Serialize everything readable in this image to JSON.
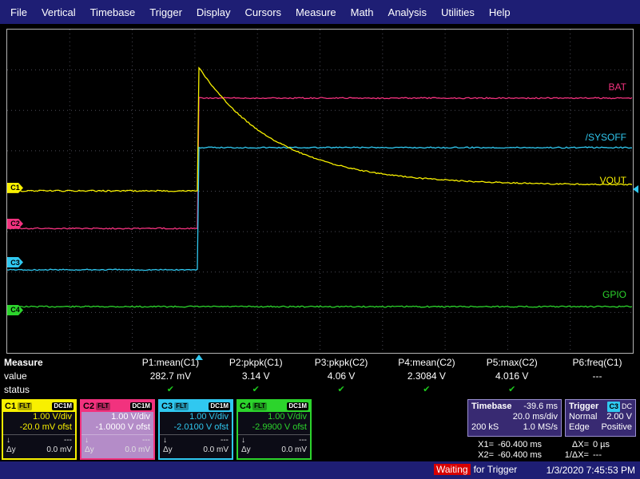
{
  "menu": {
    "items": [
      "File",
      "Vertical",
      "Timebase",
      "Trigger",
      "Display",
      "Cursors",
      "Measure",
      "Math",
      "Analysis",
      "Utilities",
      "Help"
    ]
  },
  "chart_data": {
    "type": "line",
    "x_per_div": "20.0 ms/div",
    "y_per_div": "1.00 V/div",
    "divisions_x": 10,
    "divisions_y": 8,
    "series": [
      {
        "name": "VOUT",
        "channel": "C1",
        "color": "#f8f000",
        "shape": "spike_decay",
        "baseline": 0.499,
        "peak": 0.116,
        "final": 0.481,
        "step_x": 0.306,
        "tau": 0.125,
        "label_y": 0.467,
        "z": 3
      },
      {
        "name": "BAT",
        "channel": "C2",
        "color": "#f2327e",
        "shape": "step",
        "low": 0.615,
        "high": 0.212,
        "step_x": 0.306,
        "label_y": 0.178,
        "z": 1
      },
      {
        "name": "/SYSOFF",
        "channel": "C3",
        "color": "#30c8f0",
        "shape": "step",
        "low": 0.743,
        "high": 0.365,
        "step_x": 0.306,
        "label_y": 0.333,
        "z": 2
      },
      {
        "name": "GPIO",
        "channel": "C4",
        "color": "#2cd42c",
        "shape": "flat",
        "level": 0.857,
        "label_y": 0.82,
        "z": 0
      }
    ]
  },
  "scope": {
    "trigger_marker": {
      "x": 0.306,
      "level_y": 0.494
    }
  },
  "measure": {
    "row_label": "Measure",
    "value_label": "value",
    "status_label": "status",
    "columns": [
      {
        "header": "P1:mean(C1)",
        "value": "282.7 mV",
        "status": "✔"
      },
      {
        "header": "P2:pkpk(C1)",
        "value": "3.14 V",
        "status": "✔"
      },
      {
        "header": "P3:pkpk(C2)",
        "value": "4.06 V",
        "status": "✔"
      },
      {
        "header": "P4:mean(C2)",
        "value": "2.3084 V",
        "status": "✔"
      },
      {
        "header": "P5:max(C2)",
        "value": "4.016 V",
        "status": "✔"
      },
      {
        "header": "P6:freq(C1)",
        "value": "---",
        "status": ""
      }
    ]
  },
  "channels": [
    {
      "id": "C1",
      "color": "#f8f000",
      "filter_badge": "FLT",
      "coupling_badge": "DC1M",
      "vdiv": "1.00 V/div",
      "offset": "-20.0 mV ofst",
      "cursor_label": "↓",
      "cursor_value": "---",
      "dy_label": "Δy",
      "dy_value": "0.0 mV",
      "marker_y": 0.491
    },
    {
      "id": "C2",
      "color": "#f2327e",
      "filter_badge": "FLT",
      "coupling_badge": "DC1M",
      "vdiv": "1.00 V/div",
      "offset": "-1.0000 V ofst",
      "cursor_label": "↓",
      "cursor_value": "---",
      "dy_label": "Δy",
      "dy_value": "0.0 mV",
      "marker_y": 0.602
    },
    {
      "id": "C3",
      "color": "#30c8f0",
      "filter_badge": "FLT",
      "coupling_badge": "DC1M",
      "vdiv": "1.00 V/div",
      "offset": "-2.0100 V ofst",
      "cursor_label": "↓",
      "cursor_value": "---",
      "dy_label": "Δy",
      "dy_value": "0.0 mV",
      "marker_y": 0.721
    },
    {
      "id": "C4",
      "color": "#2cd42c",
      "filter_badge": "FLT",
      "coupling_badge": "DC1M",
      "vdiv": "1.00 V/div",
      "offset": "-2.9900 V ofst",
      "cursor_label": "↓",
      "cursor_value": "---",
      "dy_label": "Δy",
      "dy_value": "0.0 mV",
      "marker_y": 0.869
    }
  ],
  "timebase": {
    "title": "Timebase",
    "offset": "-39.6 ms",
    "scale": "20.0 ms/div",
    "samples": "200 kS",
    "rate": "1.0 MS/s"
  },
  "trigger": {
    "title": "Trigger",
    "source": "C3",
    "source_color": "#30c8f0",
    "coupling": "DC",
    "mode": "Normal",
    "level": "2.00 V",
    "type": "Edge",
    "slope": "Positive"
  },
  "cursors": {
    "x1_label": "X1=",
    "x1": "-60.400 ms",
    "dx_label": "ΔX=",
    "dx": "0 µs",
    "x2_label": "X2=",
    "x2": "-60.400 ms",
    "invdx_label": "1/ΔX=",
    "invdx": "---"
  },
  "statusbar": {
    "status_highlight": "Waiting",
    "status_rest": "for Trigger",
    "datetime": "1/3/2020 7:45:53 PM"
  }
}
